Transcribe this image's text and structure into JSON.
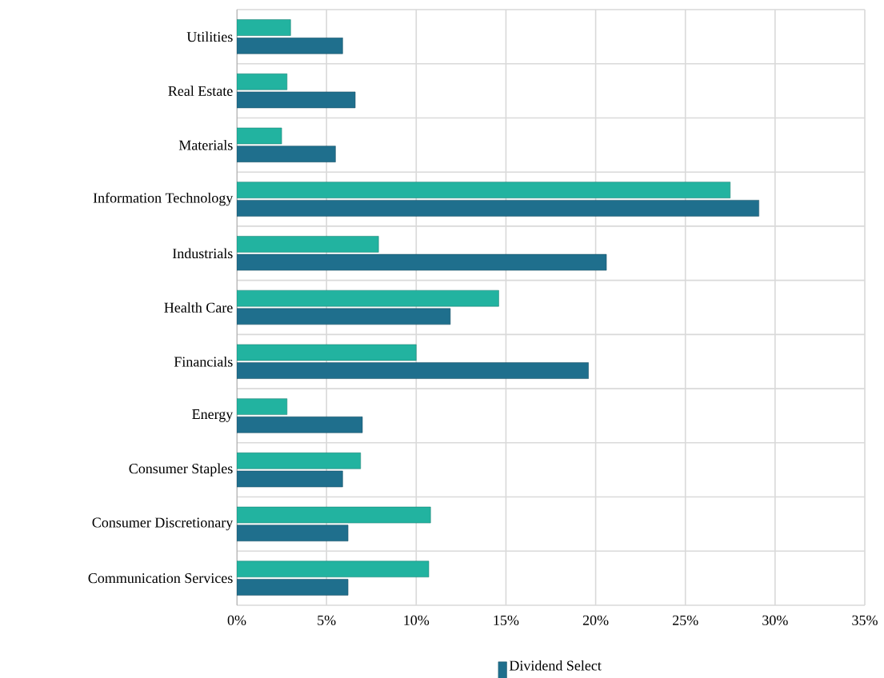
{
  "chart_data": {
    "type": "bar",
    "orientation": "horizontal",
    "categories": [
      "Utilities",
      "Real Estate",
      "Materials",
      "Information Technology",
      "Industrials",
      "Health Care",
      "Financials",
      "Energy",
      "Consumer Staples",
      "Consumer Discretionary",
      "Communication Services"
    ],
    "series": [
      {
        "color": "#22b3a0",
        "values": [
          3.0,
          2.8,
          2.5,
          27.5,
          7.9,
          14.6,
          10.0,
          2.8,
          6.9,
          10.8,
          10.7
        ]
      },
      {
        "name": "Dividend Select",
        "color": "#1f6f8d",
        "values": [
          5.9,
          6.6,
          5.5,
          29.1,
          20.6,
          11.9,
          19.6,
          7.0,
          5.9,
          6.2,
          6.2
        ]
      }
    ],
    "xlim": [
      0,
      35
    ],
    "xticks": [
      {
        "value": 0,
        "label": "0%"
      },
      {
        "value": 5,
        "label": "5%"
      },
      {
        "value": 10,
        "label": "10%"
      },
      {
        "value": 15,
        "label": "15%"
      },
      {
        "value": 20,
        "label": "20%"
      },
      {
        "value": 25,
        "label": "25%"
      },
      {
        "value": 30,
        "label": "30%"
      },
      {
        "value": 35,
        "label": "35%"
      }
    ],
    "grid": true,
    "legend": "bottom"
  }
}
